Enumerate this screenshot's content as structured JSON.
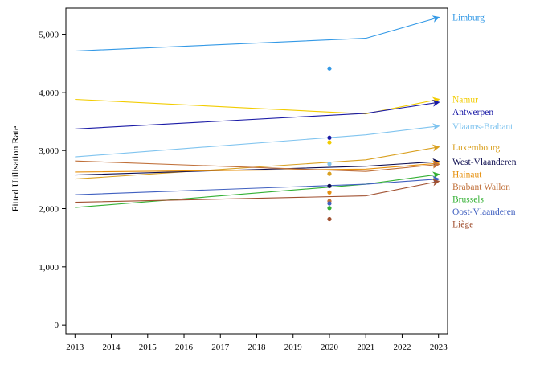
{
  "chart_data": {
    "type": "line",
    "title": "",
    "xlabel": "",
    "ylabel": "Fitted Utilisation Rate",
    "xlim": [
      2012.75,
      2023.25
    ],
    "ylim": [
      -150,
      5450
    ],
    "x_ticks": [
      "2013",
      "2014",
      "2015",
      "2016",
      "2017",
      "2018",
      "2019",
      "2020",
      "2021",
      "2022",
      "2023"
    ],
    "y_ticks": [
      "0",
      "1,000",
      "2,000",
      "3,000",
      "4,000",
      "5,000"
    ],
    "y_tick_values": [
      0,
      1000,
      2000,
      3000,
      4000,
      5000
    ],
    "grid": false,
    "legend": "right",
    "x": [
      2013,
      2021,
      2023
    ],
    "point_x": 2020,
    "series": [
      {
        "name": "Limburg",
        "color": "#3399e6",
        "values": [
          4710,
          4930,
          5290
        ],
        "point": 4410
      },
      {
        "name": "Namur",
        "color": "#f2cc00",
        "values": [
          3880,
          3630,
          3880
        ],
        "point": 3140
      },
      {
        "name": "Antwerpen",
        "color": "#1a1aa6",
        "values": [
          3370,
          3640,
          3830
        ],
        "point": 3220
      },
      {
        "name": "Vlaams-Brabant",
        "color": "#80c4ef",
        "values": [
          2890,
          3270,
          3420
        ],
        "point": 2770
      },
      {
        "name": "Luxembourg",
        "color": "#d9a020",
        "values": [
          2510,
          2840,
          3060
        ],
        "point": 2600
      },
      {
        "name": "West-Vlaanderen",
        "color": "#0d0d50",
        "values": [
          2580,
          2730,
          2810
        ],
        "point": 2390
      },
      {
        "name": "Hainaut",
        "color": "#e6900d",
        "values": [
          2630,
          2680,
          2780
        ],
        "point": 2280
      },
      {
        "name": "Brabant Wallon",
        "color": "#c0703a",
        "values": [
          2820,
          2640,
          2760
        ],
        "point": 2130
      },
      {
        "name": "Brussels",
        "color": "#33b033",
        "values": [
          2020,
          2420,
          2590
        ],
        "point": 2010
      },
      {
        "name": "Oost-Vlaanderen",
        "color": "#4060c0",
        "values": [
          2240,
          2420,
          2510
        ],
        "point": 2090
      },
      {
        "name": "Liège",
        "color": "#a05030",
        "values": [
          2110,
          2220,
          2470
        ],
        "point": 1820
      }
    ]
  }
}
